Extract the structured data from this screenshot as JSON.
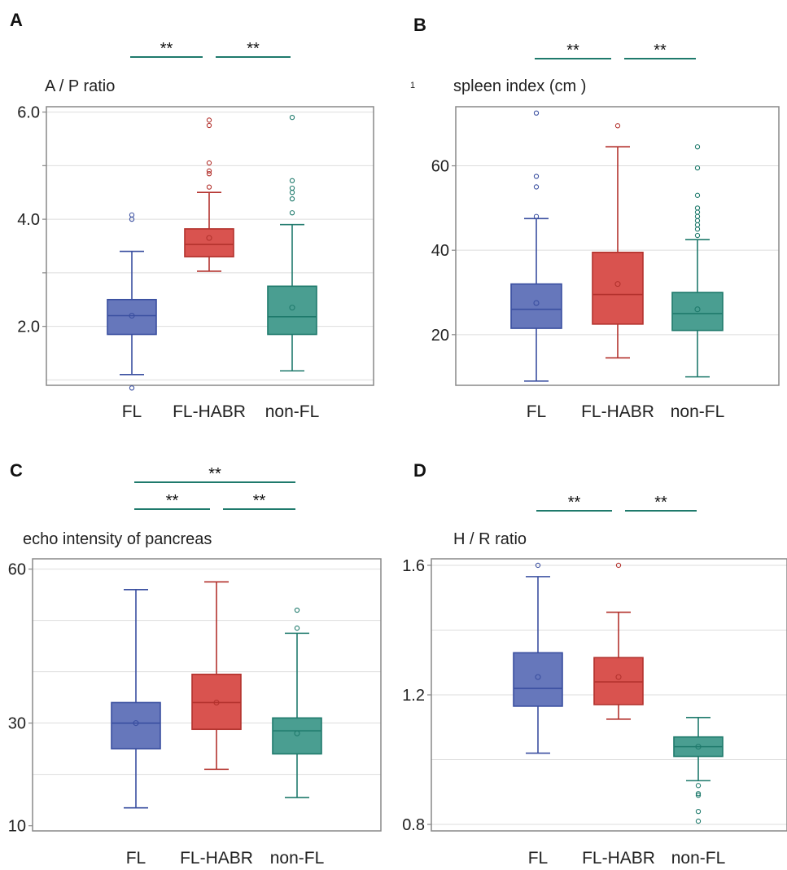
{
  "colors": {
    "FL": {
      "fill": "#6677bb",
      "stroke": "#3a4fa0"
    },
    "FL-HABR": {
      "fill": "#d9534f",
      "stroke": "#b3322d"
    },
    "non-FL": {
      "fill": "#4a9e91",
      "stroke": "#1f7a6c"
    },
    "significance_line": "#1f7a6c",
    "frame": "#888888",
    "gridline": "#dddddd"
  },
  "chart_data": [
    {
      "panel": "A",
      "type": "box",
      "ylabel": "A / P ratio",
      "categories": [
        "FL",
        "FL-HABR",
        "non-FL"
      ],
      "ylim": [
        0.9,
        6.1
      ],
      "yticks": [
        2.0,
        3.0,
        4.0,
        5.0,
        6.0
      ],
      "yticklabels": [
        "2.0",
        "",
        "4.0",
        "",
        "6.0"
      ],
      "gridlines": [
        1.0,
        2.0,
        3.0,
        4.0,
        5.0,
        6.0
      ],
      "boxes": [
        {
          "category": "FL",
          "whisker_low": 1.1,
          "q1": 1.85,
          "median": 2.2,
          "q3": 2.5,
          "whisker_high": 3.4,
          "mean": 2.2,
          "outliers": [
            0.85,
            4.0,
            4.08
          ]
        },
        {
          "category": "FL-HABR",
          "whisker_low": 3.03,
          "q1": 3.3,
          "median": 3.53,
          "q3": 3.82,
          "whisker_high": 4.5,
          "mean": 3.65,
          "outliers": [
            4.6,
            4.85,
            4.9,
            5.05,
            5.75,
            5.85
          ]
        },
        {
          "category": "non-FL",
          "whisker_low": 1.17,
          "q1": 1.85,
          "median": 2.18,
          "q3": 2.75,
          "whisker_high": 3.9,
          "mean": 2.35,
          "outliers": [
            4.12,
            4.38,
            4.5,
            4.58,
            4.72,
            5.9
          ]
        }
      ],
      "significance": [
        {
          "from": "FL",
          "to": "FL-HABR",
          "label": "**",
          "level": 0
        },
        {
          "from": "FL-HABR",
          "to": "non-FL",
          "label": "**",
          "level": 0
        }
      ]
    },
    {
      "panel": "B",
      "type": "box",
      "ylabel": "spleen index (cm )",
      "ylabel_mark": "1",
      "categories": [
        "FL",
        "FL-HABR",
        "non-FL"
      ],
      "ylim": [
        8,
        74
      ],
      "yticks": [
        20,
        40,
        60
      ],
      "yticklabels": [
        "20",
        "40",
        "60"
      ],
      "gridlines": [
        20,
        40,
        60
      ],
      "boxes": [
        {
          "category": "FL",
          "whisker_low": 9,
          "q1": 21.5,
          "median": 26,
          "q3": 32,
          "whisker_high": 47.5,
          "mean": 27.5,
          "outliers": [
            48,
            55,
            57.5,
            72.5
          ]
        },
        {
          "category": "FL-HABR",
          "whisker_low": 14.5,
          "q1": 22.5,
          "median": 29.5,
          "q3": 39.5,
          "whisker_high": 64.5,
          "mean": 32,
          "outliers": [
            69.5
          ]
        },
        {
          "category": "non-FL",
          "whisker_low": 10,
          "q1": 21,
          "median": 25,
          "q3": 30,
          "whisker_high": 42.5,
          "mean": 26,
          "outliers": [
            43.5,
            45,
            46,
            47,
            48,
            49,
            50,
            53,
            59.5,
            64.5
          ]
        }
      ],
      "significance": [
        {
          "from": "FL",
          "to": "FL-HABR",
          "label": "**",
          "level": 0
        },
        {
          "from": "FL-HABR",
          "to": "non-FL",
          "label": "**",
          "level": 0
        }
      ]
    },
    {
      "panel": "C",
      "type": "box",
      "ylabel": "echo intensity of pancreas",
      "categories": [
        "FL",
        "FL-HABR",
        "non-FL"
      ],
      "ylim": [
        9,
        62
      ],
      "yticks": [
        10,
        30,
        60
      ],
      "yticklabels": [
        "10",
        "30",
        "60"
      ],
      "gridlines": [
        20,
        30,
        40,
        50,
        60
      ],
      "boxes": [
        {
          "category": "FL",
          "whisker_low": 13.5,
          "q1": 25,
          "median": 30,
          "q3": 34,
          "whisker_high": 56,
          "mean": 30,
          "outliers": []
        },
        {
          "category": "FL-HABR",
          "whisker_low": 21,
          "q1": 28.8,
          "median": 34,
          "q3": 39.5,
          "whisker_high": 57.5,
          "mean": 34,
          "outliers": []
        },
        {
          "category": "non-FL",
          "whisker_low": 15.5,
          "q1": 24,
          "median": 28.5,
          "q3": 31,
          "whisker_high": 47.5,
          "mean": 28,
          "outliers": [
            48.5,
            52
          ]
        }
      ],
      "significance": [
        {
          "from": "FL",
          "to": "FL-HABR",
          "label": "**",
          "level": 0
        },
        {
          "from": "FL-HABR",
          "to": "non-FL",
          "label": "**",
          "level": 0
        },
        {
          "from": "FL",
          "to": "non-FL",
          "label": "**",
          "level": 1
        }
      ]
    },
    {
      "panel": "D",
      "type": "box",
      "ylabel": "H / R ratio",
      "categories": [
        "FL",
        "FL-HABR",
        "non-FL"
      ],
      "ylim": [
        0.78,
        1.62
      ],
      "yticks": [
        0.8,
        1.2,
        1.6
      ],
      "yticklabels": [
        "0.8",
        "1.2",
        "1.6"
      ],
      "gridlines": [
        0.8,
        1.0,
        1.2,
        1.4,
        1.6
      ],
      "boxes": [
        {
          "category": "FL",
          "whisker_low": 1.02,
          "q1": 1.165,
          "median": 1.22,
          "q3": 1.33,
          "whisker_high": 1.565,
          "mean": 1.255,
          "outliers": [
            1.6
          ]
        },
        {
          "category": "FL-HABR",
          "whisker_low": 1.125,
          "q1": 1.17,
          "median": 1.24,
          "q3": 1.315,
          "whisker_high": 1.455,
          "mean": 1.255,
          "outliers": [
            1.6
          ]
        },
        {
          "category": "non-FL",
          "whisker_low": 0.935,
          "q1": 1.01,
          "median": 1.04,
          "q3": 1.07,
          "whisker_high": 1.13,
          "mean": 1.04,
          "outliers": [
            0.81,
            0.84,
            0.89,
            0.895,
            0.92
          ]
        }
      ],
      "significance": [
        {
          "from": "FL",
          "to": "FL-HABR",
          "label": "**",
          "level": 0
        },
        {
          "from": "FL-HABR",
          "to": "non-FL",
          "label": "**",
          "level": 0
        }
      ]
    }
  ]
}
